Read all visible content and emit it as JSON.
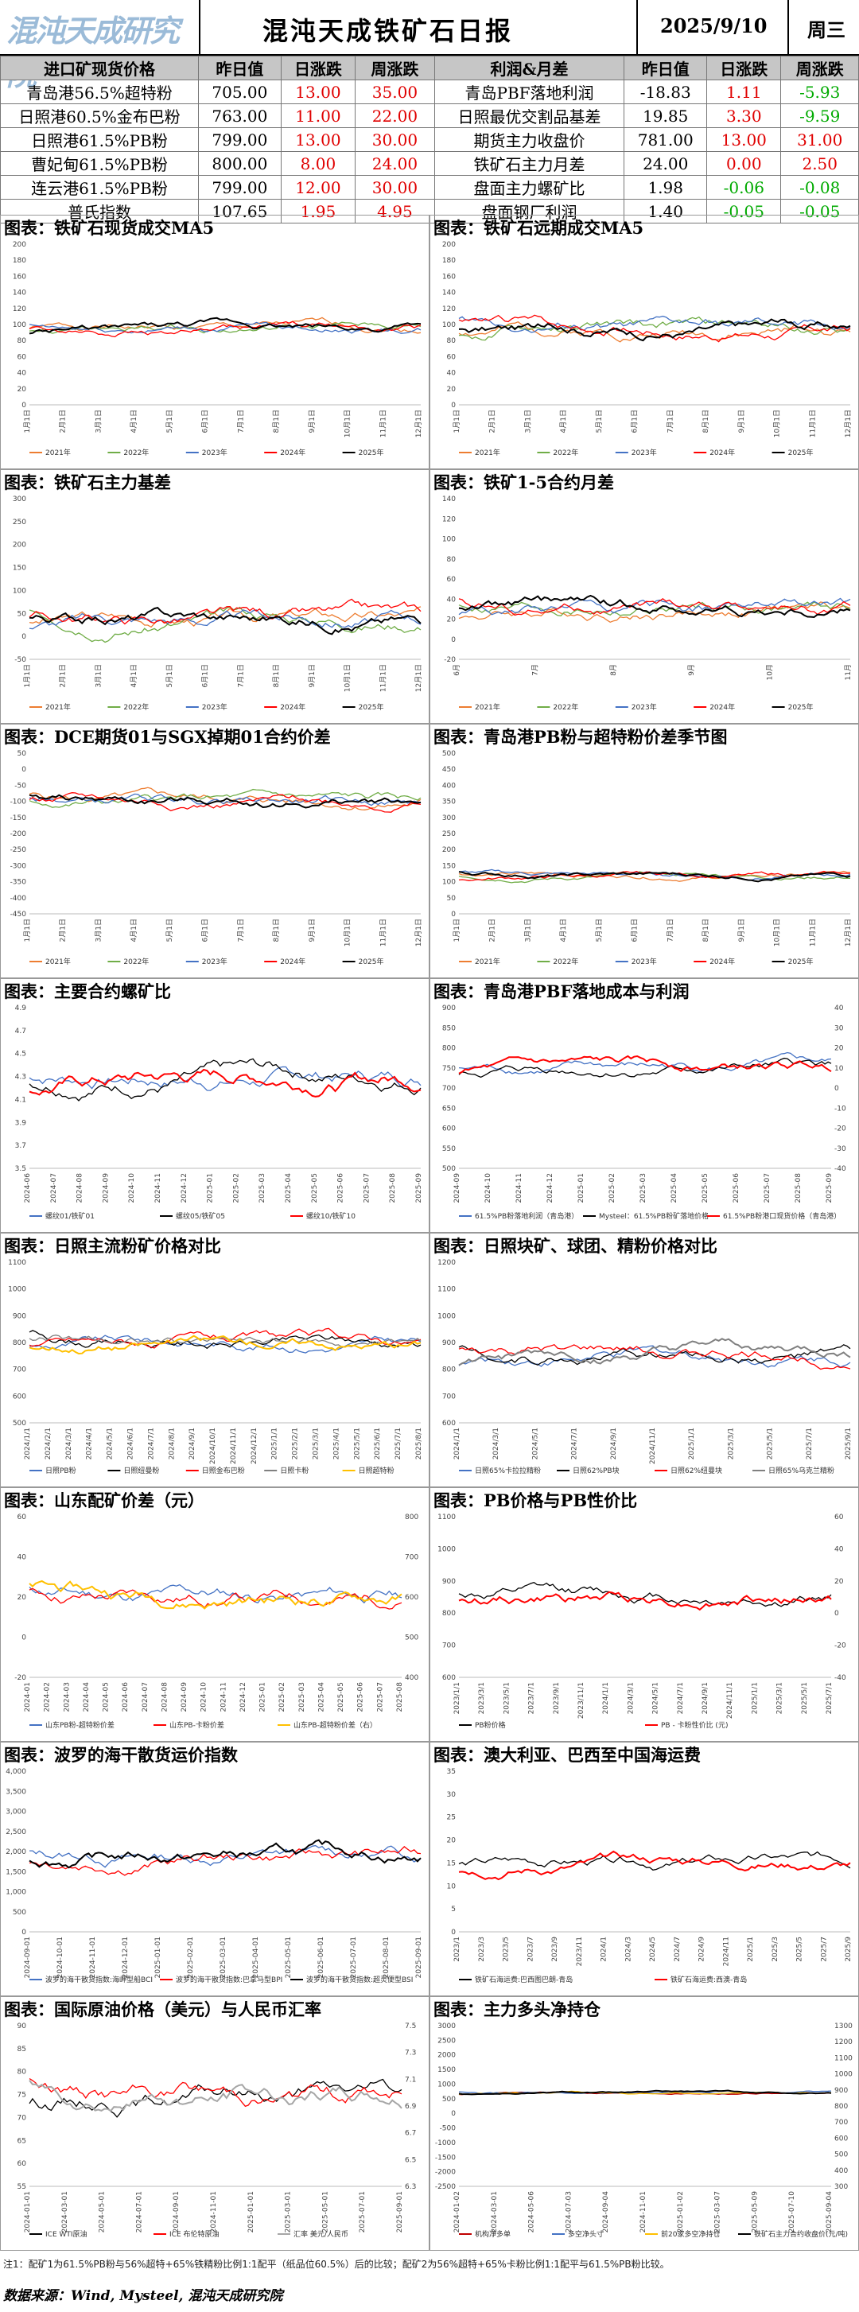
{
  "header": {
    "logo_text": "混沌天成研究院",
    "title": "混沌天成铁矿石日报",
    "date": "2025/9/10",
    "weekday": "周三"
  },
  "table": {
    "left_headers": [
      "进口矿现货价格",
      "昨日值",
      "日涨跌",
      "周涨跌"
    ],
    "right_headers": [
      "利润&月差",
      "昨日值",
      "日涨跌",
      "周涨跌"
    ],
    "rows": [
      {
        "l_name": "青岛港56.5%超特粉",
        "l_val": "705.00",
        "l_day": "13.00",
        "l_week": "35.00",
        "r_name": "青岛PBF落地利润",
        "r_val": "-18.83",
        "r_day": "1.11",
        "r_week": "-5.93"
      },
      {
        "l_name": "日照港60.5%金布巴粉",
        "l_val": "763.00",
        "l_day": "11.00",
        "l_week": "22.00",
        "r_name": "日照最优交割品基差",
        "r_val": "19.85",
        "r_day": "3.30",
        "r_week": "-9.59"
      },
      {
        "l_name": "日照港61.5%PB粉",
        "l_val": "799.00",
        "l_day": "13.00",
        "l_week": "30.00",
        "r_name": "期货主力收盘价",
        "r_val": "781.00",
        "r_day": "13.00",
        "r_week": "31.00"
      },
      {
        "l_name": "曹妃甸61.5%PB粉",
        "l_val": "800.00",
        "l_day": "8.00",
        "l_week": "24.00",
        "r_name": "铁矿石主力月差",
        "r_val": "24.00",
        "r_day": "0.00",
        "r_week": "2.50"
      },
      {
        "l_name": "连云港61.5%PB粉",
        "l_val": "799.00",
        "l_day": "12.00",
        "l_week": "30.00",
        "r_name": "盘面主力螺矿比",
        "r_val": "1.98",
        "r_day": "-0.06",
        "r_week": "-0.08"
      },
      {
        "l_name": "普氏指数",
        "l_val": "107.65",
        "l_day": "1.95",
        "l_week": "4.95",
        "r_name": "盘面钢厂利润",
        "r_val": "1.40",
        "r_day": "-0.05",
        "r_week": "-0.05"
      }
    ]
  },
  "colors": {
    "up": "#e00000",
    "down": "#00aa00",
    "header_bg": "#c6c6c6"
  },
  "chart_data": [
    {
      "type": "line",
      "title": "图表：铁矿石现货成交MA5",
      "ylim": [
        0,
        200
      ],
      "yticks": [
        "0",
        "20",
        "40",
        "60",
        "80",
        "100",
        "120",
        "140",
        "160",
        "180",
        "200"
      ],
      "xticks": [
        "1月1日",
        "2月1日",
        "3月1日",
        "4月1日",
        "5月1日",
        "6月1日",
        "7月1日",
        "8月1日",
        "9月1日",
        "10月1日",
        "11月1日",
        "12月1日"
      ],
      "legend": [
        "2021年",
        "2022年",
        "2023年",
        "2024年",
        "2025年"
      ],
      "colors": [
        "#ed7d31",
        "#70ad47",
        "#4472c4",
        "#ff0000",
        "#000000"
      ],
      "seed": 1,
      "base": 95,
      "amp": 20
    },
    {
      "type": "line",
      "title": "图表：铁矿石远期成交MA5",
      "ylim": [
        0,
        200
      ],
      "yticks": [
        "0",
        "20",
        "40",
        "60",
        "80",
        "100",
        "120",
        "140",
        "160",
        "180",
        "200"
      ],
      "xticks": [
        "1月1日",
        "2月1日",
        "3月1日",
        "4月1日",
        "5月1日",
        "6月1日",
        "7月1日",
        "8月1日",
        "9月1日",
        "10月1日",
        "11月1日",
        "12月1日"
      ],
      "legend": [
        "2021年",
        "2022年",
        "2023年",
        "2024年",
        "2025年"
      ],
      "colors": [
        "#ed7d31",
        "#70ad47",
        "#4472c4",
        "#ff0000",
        "#000000"
      ],
      "seed": 2,
      "base": 95,
      "amp": 30
    },
    {
      "type": "line",
      "title": "图表：铁矿石主力基差",
      "ylim": [
        -50,
        300
      ],
      "yticks": [
        "-50",
        "0",
        "50",
        "100",
        "150",
        "200",
        "250",
        "300"
      ],
      "xticks": [
        "1月1日",
        "2月1日",
        "3月1日",
        "4月1日",
        "5月1日",
        "6月1日",
        "7月1日",
        "8月1日",
        "9月1日",
        "10月1日",
        "11月1日",
        "12月1日"
      ],
      "legend": [
        "2021年",
        "2022年",
        "2023年",
        "2024年",
        "2025年"
      ],
      "colors": [
        "#ed7d31",
        "#70ad47",
        "#4472c4",
        "#ff0000",
        "#000000"
      ],
      "seed": 3,
      "base": 40,
      "amp": 60
    },
    {
      "type": "line",
      "title": "图表：铁矿1-5合约月差",
      "ylim": [
        -20,
        140
      ],
      "yticks": [
        "-20",
        "0",
        "20",
        "40",
        "60",
        "80",
        "100",
        "120",
        "140"
      ],
      "xticks": [
        "6月",
        "7月",
        "8月",
        "9月",
        "10月",
        "11月"
      ],
      "legend": [
        "2021年",
        "2022年",
        "2023年",
        "2024年",
        "2025年"
      ],
      "colors": [
        "#ed7d31",
        "#70ad47",
        "#4472c4",
        "#ff0000",
        "#000000"
      ],
      "seed": 4,
      "base": 30,
      "amp": 25
    },
    {
      "type": "line",
      "title": "图表：DCE期货01与SGX掉期01合约价差",
      "ylim": [
        -450,
        50
      ],
      "yticks": [
        "-450",
        "-400",
        "-350",
        "-300",
        "-250",
        "-200",
        "-150",
        "-100",
        "-50",
        "0",
        "50"
      ],
      "xticks": [
        "1月1日",
        "2月1日",
        "3月1日",
        "4月1日",
        "5月1日",
        "6月1日",
        "7月1日",
        "8月1日",
        "9月1日",
        "10月1日",
        "11月1日",
        "12月1日"
      ],
      "legend": [
        "2021年",
        "2022年",
        "2023年",
        "2024年",
        "2025年"
      ],
      "colors": [
        "#ed7d31",
        "#70ad47",
        "#4472c4",
        "#ff0000",
        "#000000"
      ],
      "seed": 5,
      "base": -100,
      "amp": 60
    },
    {
      "type": "line",
      "title": "图表：青岛港PB粉与超特粉价差季节图",
      "ylim": [
        0,
        500
      ],
      "yticks": [
        "0",
        "50",
        "100",
        "150",
        "200",
        "250",
        "300",
        "350",
        "400",
        "450",
        "500"
      ],
      "xticks": [
        "1月1日",
        "2月1日",
        "3月1日",
        "4月1日",
        "5月1日",
        "6月1日",
        "7月1日",
        "8月1日",
        "9月1日",
        "10月1日",
        "11月1日",
        "12月1日"
      ],
      "legend": [
        "2021年",
        "2022年",
        "2023年",
        "2024年",
        "2025年"
      ],
      "colors": [
        "#ed7d31",
        "#70ad47",
        "#4472c4",
        "#ff0000",
        "#000000"
      ],
      "seed": 6,
      "base": 120,
      "amp": 30
    },
    {
      "type": "line",
      "title": "图表：主要合约螺矿比",
      "ylim": [
        3.5,
        4.9
      ],
      "yticks": [
        "3.5",
        "3.7",
        "3.9",
        "4.1",
        "4.3",
        "4.5",
        "4.7",
        "4.9"
      ],
      "xticks": [
        "2024-06",
        "2024-07",
        "2024-08",
        "2024-09",
        "2024-10",
        "2024-11",
        "2024-12",
        "2025-01",
        "2025-02",
        "2025-03",
        "2025-04",
        "2025-05",
        "2025-06",
        "2025-07",
        "2025-08",
        "2025-09"
      ],
      "legend": [
        "螺纹01/铁矿01",
        "螺纹05/铁矿05",
        "螺纹10/铁矿10"
      ],
      "colors": [
        "#4472c4",
        "#000000",
        "#ff0000"
      ],
      "seed": 7,
      "base": 4.3,
      "amp": 0.3
    },
    {
      "type": "line",
      "title": "图表：青岛港PBF落地成本与利润",
      "ylim": [
        500,
        900
      ],
      "yticks": [
        "500",
        "550",
        "600",
        "650",
        "700",
        "750",
        "800",
        "850",
        "900"
      ],
      "y2ticks": [
        "-40",
        "-30",
        "-20",
        "-10",
        "0",
        "10",
        "20",
        "30",
        "40"
      ],
      "xticks": [
        "2024-09",
        "2024-10",
        "2024-11",
        "2024-12",
        "2025-01",
        "2025-02",
        "2025-03",
        "2025-04",
        "2025-05",
        "2025-06",
        "2025-07",
        "2025-08",
        "2025-09"
      ],
      "legend": [
        "61.5%PB粉落地利润（青岛港）",
        "Mysteel：61.5%PB粉矿落地价格",
        "61.5%PB粉港口现货价格（青岛港）"
      ],
      "colors": [
        "#4472c4",
        "#000000",
        "#ff0000"
      ],
      "seed": 8,
      "base": 750,
      "amp": 50
    },
    {
      "type": "line",
      "title": "图表：日照主流粉矿价格对比",
      "ylim": [
        500,
        1100
      ],
      "yticks": [
        "500",
        "600",
        "700",
        "800",
        "900",
        "1000",
        "1100"
      ],
      "xticks": [
        "2024/1/1",
        "2024/2/1",
        "2024/3/1",
        "2024/4/1",
        "2024/5/1",
        "2024/6/1",
        "2024/7/1",
        "2024/8/1",
        "2024/9/1",
        "2024/10/1",
        "2024/11/1",
        "2024/12/1",
        "2025/1/1",
        "2025/2/1",
        "2025/3/1",
        "2025/4/1",
        "2025/5/1",
        "2025/6/1",
        "2025/7/1",
        "2025/8/1"
      ],
      "legend": [
        "日照PB粉",
        "日照纽曼粉",
        "日照金布巴粉",
        "日照卡粉",
        "日照超特粉"
      ],
      "colors": [
        "#4472c4",
        "#000000",
        "#ff0000",
        "#808080",
        "#ffc000"
      ],
      "seed": 9,
      "base": 800,
      "amp": 80
    },
    {
      "type": "line",
      "title": "图表：日照块矿、球团、精粉价格对比",
      "ylim": [
        600,
        1200
      ],
      "yticks": [
        "600",
        "700",
        "800",
        "900",
        "1000",
        "1100",
        "1200"
      ],
      "xticks": [
        "2024/1/1",
        "2024/3/1",
        "2024/5/1",
        "2024/7/1",
        "2024/9/1",
        "2024/11/1",
        "2025/1/1",
        "2025/3/1",
        "2025/5/1",
        "2025/7/1",
        "2025/9/1"
      ],
      "legend": [
        "日照65%卡拉拉精粉",
        "日照62%PB块",
        "日照62%纽曼块",
        "日照65%乌克兰精粉"
      ],
      "colors": [
        "#4472c4",
        "#000000",
        "#ff0000",
        "#808080"
      ],
      "seed": 10,
      "base": 850,
      "amp": 90
    },
    {
      "type": "line",
      "title": "图表：山东配矿价差（元）",
      "ylim": [
        -20,
        60
      ],
      "yticks": [
        "-20",
        "0",
        "20",
        "40",
        "60"
      ],
      "y2ticks": [
        "400",
        "500",
        "600",
        "700",
        "800"
      ],
      "xticks": [
        "2024-01",
        "2024-02",
        "2024-03",
        "2024-04",
        "2024-05",
        "2024-06",
        "2024-07",
        "2024-08",
        "2024-09",
        "2024-10",
        "2024-11",
        "2024-12",
        "2025-01",
        "2025-02",
        "2025-03",
        "2025-04",
        "2025-05",
        "2025-06",
        "2025-07",
        "2025-08"
      ],
      "legend": [
        "山东PB粉-超特粉价差",
        "山东PB-卡粉价差",
        "山东PB-超特粉价差（右）"
      ],
      "colors": [
        "#4472c4",
        "#ff0000",
        "#ffc000"
      ],
      "seed": 11,
      "base": 20,
      "amp": 15
    },
    {
      "type": "line",
      "title": "图表：PB价格与PB性价比",
      "ylim": [
        600,
        1100
      ],
      "yticks": [
        "600",
        "700",
        "800",
        "900",
        "1000",
        "1100"
      ],
      "y2ticks": [
        "-40",
        "-20",
        "0",
        "20",
        "40",
        "60"
      ],
      "xticks": [
        "2023/1/1",
        "2023/3/1",
        "2023/5/1",
        "2023/7/1",
        "2023/9/1",
        "2023/11/1",
        "2024/1/1",
        "2024/3/1",
        "2024/5/1",
        "2024/7/1",
        "2024/9/1",
        "2024/11/1",
        "2025/1/1",
        "2025/3/1",
        "2025/5/1",
        "2025/7/1"
      ],
      "legend": [
        "PB粉价格",
        "PB - 卡粉性价比 (元)"
      ],
      "colors": [
        "#000000",
        "#ff0000"
      ],
      "seed": 12,
      "base": 850,
      "amp": 80
    },
    {
      "type": "line",
      "title": "图表：波罗的海干散货运价指数",
      "ylim": [
        0,
        4000
      ],
      "yticks": [
        "0",
        "500",
        "1,000",
        "1,500",
        "2,000",
        "2,500",
        "3,000",
        "3,500",
        "4,000"
      ],
      "xticks": [
        "2024-09-01",
        "2024-10-01",
        "2024-11-01",
        "2024-12-01",
        "2025-01-01",
        "2025-02-01",
        "2025-03-01",
        "2025-04-01",
        "2025-05-01",
        "2025-06-01",
        "2025-07-01",
        "2025-08-01",
        "2025-09-01"
      ],
      "legend": [
        "波罗的海干散货指数:海岬型船BCI",
        "波罗的海干散货指数:巴拿马型BPI",
        "波罗的海干散货指数:超灵便型BSI"
      ],
      "colors": [
        "#4472c4",
        "#ff0000",
        "#000000"
      ],
      "seed": 13,
      "base": 1900,
      "amp": 700
    },
    {
      "type": "line",
      "title": "图表：澳大利亚、巴西至中国海运费",
      "ylim": [
        0,
        35
      ],
      "yticks": [
        "0",
        "5",
        "10",
        "15",
        "20",
        "25",
        "30",
        "35"
      ],
      "xticks": [
        "2023/1",
        "2023/3",
        "2023/5",
        "2023/7",
        "2023/9",
        "2023/11",
        "2024/1",
        "2024/3",
        "2024/5",
        "2024/7",
        "2024/9",
        "2024/11",
        "2025/1",
        "2025/3",
        "2025/5",
        "2025/7",
        "2025/9"
      ],
      "legend": [
        "铁矿石海运费:巴西图巴朗-青岛",
        "铁矿石海运费:西澳-青岛"
      ],
      "colors": [
        "#000000",
        "#ff0000"
      ],
      "seed": 14,
      "base": 15,
      "amp": 5
    },
    {
      "type": "line",
      "title": "图表：国际原油价格（美元）与人民币汇率",
      "ylim": [
        55,
        90
      ],
      "yticks": [
        "55",
        "60",
        "65",
        "70",
        "75",
        "80",
        "85",
        "90"
      ],
      "y2ticks": [
        "6.3",
        "6.5",
        "6.7",
        "6.9",
        "7.1",
        "7.3",
        "7.5"
      ],
      "xticks": [
        "2024-01-01",
        "2024-03-01",
        "2024-05-01",
        "2024-07-01",
        "2024-09-01",
        "2024-11-01",
        "2025-01-01",
        "2025-03-01",
        "2025-05-01",
        "2025-07-01",
        "2025-09-01"
      ],
      "legend": [
        "ICE WTI原油",
        "ICE 布伦特原油",
        "汇率 美元/人民币"
      ],
      "colors": [
        "#000000",
        "#ff0000",
        "#a6a6a6"
      ],
      "seed": 15,
      "base": 75,
      "amp": 8
    },
    {
      "type": "line",
      "title": "图表：主力多头净持仓",
      "ylim": [
        -2500,
        3000
      ],
      "yticks": [
        "-2500",
        "-2000",
        "-1500",
        "-1000",
        "-500",
        "0",
        "500",
        "1000",
        "1500",
        "2000",
        "2500",
        "3000"
      ],
      "y2ticks": [
        "300",
        "400",
        "500",
        "600",
        "700",
        "800",
        "900",
        "1000",
        "1100",
        "1200",
        "1300"
      ],
      "xticks": [
        "2024-01-02",
        "2024-03-01",
        "2024-05-06",
        "2024-07-03",
        "2024-09-04",
        "2024-11-01",
        "2025-01-02",
        "2025-03-07",
        "2025-05-09",
        "2025-07-10",
        "2025-09-04"
      ],
      "legend": [
        "机构净多单",
        "多空净头寸",
        "前20家多空净持仓",
        "铁矿石主力合约收盘价(元/吨)"
      ],
      "colors": [
        "#c00000",
        "#4472c4",
        "#ffc000",
        "#000000"
      ],
      "seed": 16,
      "base": 700,
      "amp": 120
    }
  ],
  "footer": {
    "note": "注1：配矿1为61.5%PB粉与56%超特+65%铁精粉比例1:1配平（纸品位60.5%）后的比较；配矿2为56%超特+65%卡粉比例1:1配平与61.5%PB粉比较。",
    "source": "数据来源：Wind, Mysteel, 混沌天成研究院"
  }
}
